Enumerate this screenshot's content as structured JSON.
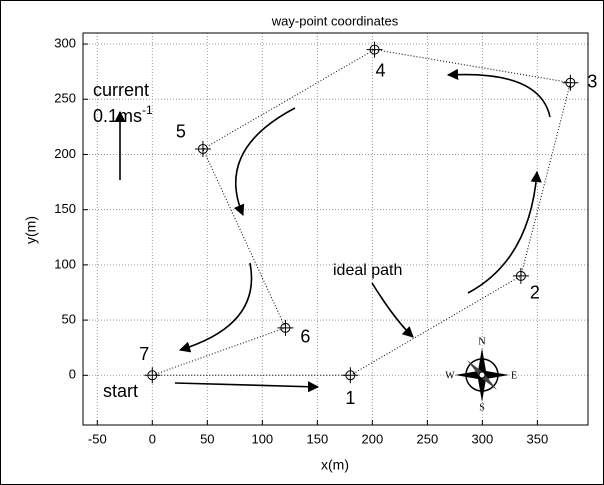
{
  "chart_data": {
    "type": "line",
    "title": "way-point coordinates",
    "xlabel": "x(m)",
    "ylabel": "y(m)",
    "x": [
      0,
      180,
      335,
      380,
      202,
      46,
      121
    ],
    "y": [
      0,
      0,
      90,
      265,
      295,
      205,
      43
    ],
    "point_labels": [
      "7",
      "1",
      "2",
      "3",
      "4",
      "5",
      "6"
    ],
    "closed": true,
    "color": "#000000",
    "xlim": [
      -63,
      396
    ],
    "xticks": [
      -50,
      0,
      50,
      100,
      150,
      200,
      250,
      300,
      350
    ],
    "ylim": [
      -45,
      310
    ],
    "yticks": [
      0,
      50,
      100,
      150,
      200,
      250,
      300
    ],
    "grid": true,
    "annotations": {
      "current": "current",
      "speed": "0.1ms",
      "speed_exponent": "-1",
      "start": "start",
      "ideal_path": "ideal path"
    },
    "compass": {
      "N": "N",
      "E": "E",
      "S": "S",
      "W": "W"
    }
  }
}
